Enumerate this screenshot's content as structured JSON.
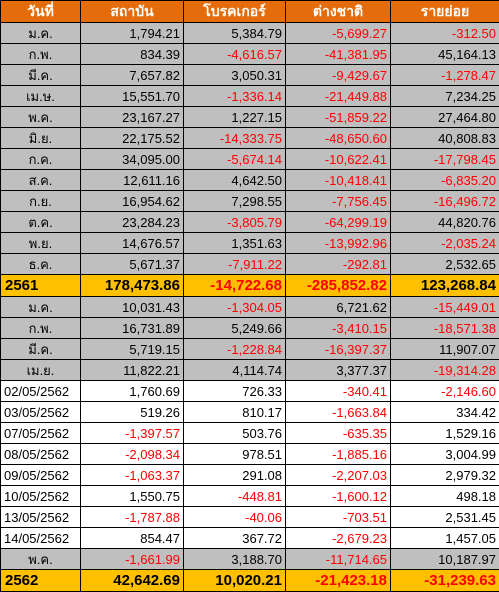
{
  "colors": {
    "header_bg": "#e46c0a",
    "month_row_bg": "#bfbfbf",
    "daily_row_bg": "#ffffff",
    "total_row_bg": "#ffc000",
    "negative_text": "#ff0000"
  },
  "table": {
    "headers": [
      "วันที่",
      "สถาบัน",
      "โบรคเกอร์",
      "ต่างชาติ",
      "รายย่อย"
    ],
    "rows": [
      {
        "type": "month",
        "label": "ม.ค.",
        "values": [
          "1,794.21",
          "5,384.79",
          "-5,699.27",
          "-312.50"
        ]
      },
      {
        "type": "month",
        "label": "ก.พ.",
        "values": [
          "834.39",
          "-4,616.57",
          "-41,381.95",
          "45,164.13"
        ]
      },
      {
        "type": "month",
        "label": "มี.ค.",
        "values": [
          "7,657.82",
          "3,050.31",
          "-9,429.67",
          "-1,278.47"
        ]
      },
      {
        "type": "month",
        "label": "เม.ษ.",
        "values": [
          "15,551.70",
          "-1,336.14",
          "-21,449.88",
          "7,234.25"
        ]
      },
      {
        "type": "month",
        "label": "พ.ค.",
        "values": [
          "23,167.27",
          "1,227.15",
          "-51,859.22",
          "27,464.80"
        ]
      },
      {
        "type": "month",
        "label": "มิ.ย.",
        "values": [
          "22,175.52",
          "-14,333.75",
          "-48,650.60",
          "40,808.83"
        ]
      },
      {
        "type": "month",
        "label": "ก.ค.",
        "values": [
          "34,095.00",
          "-5,674.14",
          "-10,622.41",
          "-17,798.45"
        ]
      },
      {
        "type": "month",
        "label": "ส.ค.",
        "values": [
          "12,611.16",
          "4,642.50",
          "-10,418.41",
          "-6,835.20"
        ]
      },
      {
        "type": "month",
        "label": "ก.ย.",
        "values": [
          "16,954.62",
          "7,298.55",
          "-7,756.45",
          "-16,496.72"
        ]
      },
      {
        "type": "month",
        "label": "ต.ค.",
        "values": [
          "23,284.23",
          "-3,805.79",
          "-64,299.19",
          "44,820.76"
        ]
      },
      {
        "type": "month",
        "label": "พ.ย.",
        "values": [
          "14,676.57",
          "1,351.63",
          "-13,992.96",
          "-2,035.24"
        ]
      },
      {
        "type": "month",
        "label": "ธ.ค.",
        "values": [
          "5,671.37",
          "-7,911.22",
          "-292.81",
          "2,532.65"
        ]
      },
      {
        "type": "total",
        "label": "2561",
        "values": [
          "178,473.86",
          "-14,722.68",
          "-285,852.82",
          "123,268.84"
        ]
      },
      {
        "type": "month",
        "label": "ม.ค.",
        "values": [
          "10,031.43",
          "-1,304.05",
          "6,721.62",
          "-15,449.01"
        ]
      },
      {
        "type": "month",
        "label": "ก.พ.",
        "values": [
          "16,731.89",
          "5,249.66",
          "-3,410.15",
          "-18,571.38"
        ]
      },
      {
        "type": "month",
        "label": "มี.ค.",
        "values": [
          "5,719.15",
          "-1,228.84",
          "-16,397.37",
          "11,907.07"
        ]
      },
      {
        "type": "month",
        "label": "เม.ย.",
        "values": [
          "11,822.21",
          "4,114.74",
          "3,377.37",
          "-19,314.28"
        ]
      },
      {
        "type": "daily",
        "label": "02/05/2562",
        "values": [
          "1,760.69",
          "726.33",
          "-340.41",
          "-2,146.60"
        ]
      },
      {
        "type": "daily",
        "label": "03/05/2562",
        "values": [
          "519.26",
          "810.17",
          "-1,663.84",
          "334.42"
        ]
      },
      {
        "type": "daily",
        "label": "07/05/2562",
        "values": [
          "-1,397.57",
          "503.76",
          "-635.35",
          "1,529.16"
        ]
      },
      {
        "type": "daily",
        "label": "08/05/2562",
        "values": [
          "-2,098.34",
          "978.51",
          "-1,885.16",
          "3,004.99"
        ]
      },
      {
        "type": "daily",
        "label": "09/05/2562",
        "values": [
          "-1,063.37",
          "291.08",
          "-2,207.03",
          "2,979.32"
        ]
      },
      {
        "type": "daily",
        "label": "10/05/2562",
        "values": [
          "1,550.75",
          "-448.81",
          "-1,600.12",
          "498.18"
        ]
      },
      {
        "type": "daily",
        "label": "13/05/2562",
        "values": [
          "-1,787.88",
          "-40.06",
          "-703.51",
          "2,531.45"
        ]
      },
      {
        "type": "daily",
        "label": "14/05/2562",
        "values": [
          "854.47",
          "367.72",
          "-2,679.23",
          "1,457.05"
        ]
      },
      {
        "type": "month",
        "label": "พ.ค.",
        "values": [
          "-1,661.99",
          "3,188.70",
          "-11,714.65",
          "10,187.97"
        ]
      },
      {
        "type": "total",
        "label": "2562",
        "values": [
          "42,642.69",
          "10,020.21",
          "-21,423.18",
          "-31,239.63"
        ]
      }
    ]
  }
}
